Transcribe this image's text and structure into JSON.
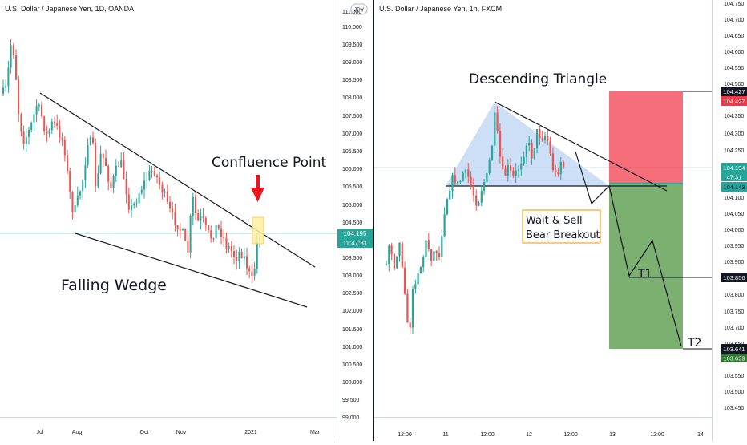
{
  "colors": {
    "up": "#26a69a",
    "down": "#ef5350",
    "pattern_line": "#131722",
    "triangle_fill": "#bcd4f4",
    "stop_zone": "#f23645",
    "target_zone": "#3d8a2e",
    "hline": "#9ad4cc",
    "arrow": "#e8141e",
    "callout_border": "#f5a623",
    "badge_dark": "#131722",
    "badge_red": "#f23645",
    "badge_green": "#2e7d32",
    "badge_teal": "#26a69a",
    "highlight": "#fff0a0"
  },
  "left_chart": {
    "title": "U.S. Dollar / Japanese Yen, 1D, OANDA",
    "currency_badge": "JPY",
    "price_label": "104.195",
    "countdown": "11:47:31",
    "annotations": {
      "pattern": "Falling Wedge",
      "confluence": "Confluence Point"
    },
    "chart_data": {
      "type": "candlestick",
      "title": "U.S. Dollar / Japanese Yen, 1D, OANDA",
      "y_ticks": [
        "111.000",
        "110.000",
        "109.500",
        "109.000",
        "108.500",
        "108.000",
        "107.500",
        "107.000",
        "106.500",
        "106.000",
        "105.500",
        "105.000",
        "104.500",
        "103.500",
        "103.000",
        "102.500",
        "102.000",
        "101.500",
        "101.000",
        "100.500",
        "100.000",
        "99.500",
        "99.000"
      ],
      "x_ticks": [
        "Jul",
        "Aug",
        "Oct",
        "Nov",
        "2021",
        "Mar"
      ],
      "ylim": [
        98.6,
        111.0
      ],
      "last_price": 104.195,
      "pattern": "falling wedge",
      "wedge_upper_line": [
        [
          "~Jun 25",
          108.1
        ],
        [
          "~Jan 05",
          104.6
        ]
      ],
      "wedge_lower_line": [
        [
          "~Aug 05",
          104.0
        ],
        [
          "~Jan 05",
          102.7
        ]
      ]
    }
  },
  "right_chart": {
    "title": "U.S. Dollar / Japanese Yen, 1h, FXCM",
    "annotations": {
      "pattern": "Descending Triangle",
      "callout_line1": "Wait & Sell",
      "callout_line2": "Bear Breakout",
      "target1": "T1",
      "target2": "T2"
    },
    "badges": {
      "stop_a": "104.427",
      "stop_b": "104.427",
      "current": "104.194",
      "countdown": "47:31",
      "entry": "104.143",
      "t1": "103.856",
      "t2_a": "103.641",
      "t2_b": "103.639"
    },
    "chart_data": {
      "type": "candlestick",
      "title": "U.S. Dollar / Japanese Yen, 1h, FXCM",
      "y_ticks": [
        "104.750",
        "104.700",
        "104.650",
        "104.600",
        "104.550",
        "104.500",
        "104.350",
        "104.300",
        "104.250",
        "104.200",
        "104.100",
        "104.050",
        "104.000",
        "103.950",
        "103.900",
        "103.800",
        "103.750",
        "103.700",
        "103.650",
        "103.550",
        "103.500",
        "103.450"
      ],
      "x_ticks": [
        "12:00",
        "11",
        "12:00",
        "12",
        "12:00",
        "13",
        "12:00",
        "14"
      ],
      "ylim": [
        103.42,
        104.77
      ],
      "last_price": 104.194,
      "pattern": "descending triangle",
      "trade_plan": {
        "entry": 104.143,
        "stop_loss": 104.427,
        "target_1": 103.856,
        "target_2": 103.641
      }
    }
  }
}
